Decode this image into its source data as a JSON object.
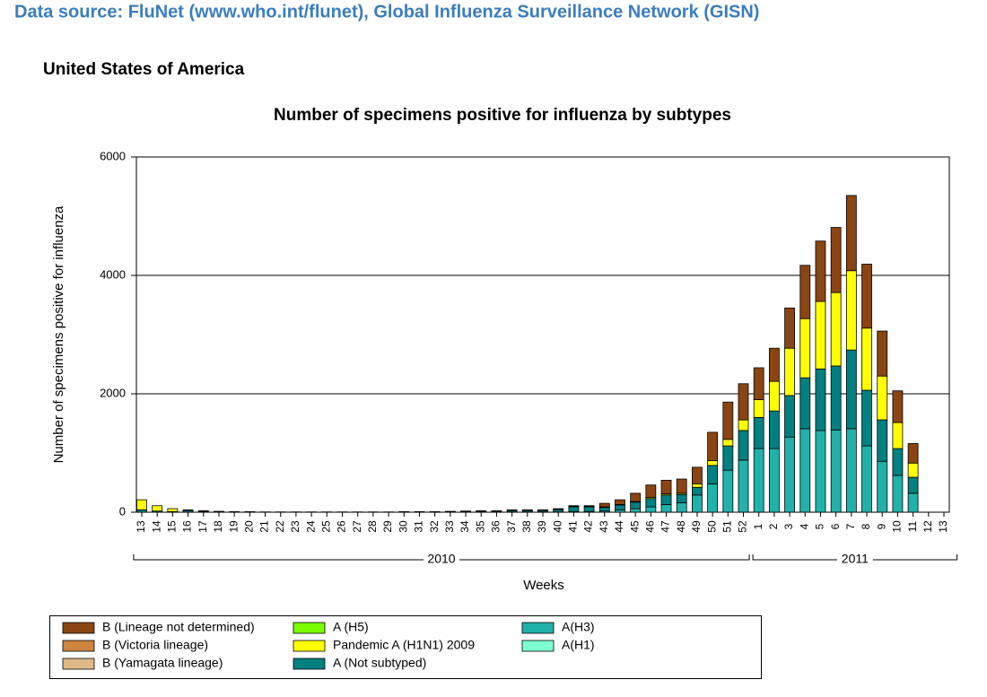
{
  "header": {
    "source": "Data source: FluNet (www.who.int/flunet), Global Influenza Surveillance Network (GISN)",
    "country": "United States of America"
  },
  "chart_data": {
    "type": "stacked_bar",
    "title": "Number of specimens positive for influenza by subtypes",
    "y_label": "Number of specimens positive for influenza",
    "x_label": "Weeks",
    "x_groups": [
      {
        "label": "2010",
        "count": 40
      },
      {
        "label": "2011",
        "count": 13
      }
    ],
    "categories": [
      "13",
      "14",
      "15",
      "16",
      "17",
      "18",
      "19",
      "20",
      "21",
      "22",
      "23",
      "24",
      "25",
      "26",
      "27",
      "28",
      "29",
      "30",
      "31",
      "32",
      "33",
      "34",
      "35",
      "36",
      "37",
      "38",
      "39",
      "40",
      "41",
      "42",
      "43",
      "44",
      "45",
      "46",
      "47",
      "48",
      "49",
      "50",
      "51",
      "52",
      "1",
      "2",
      "3",
      "4",
      "5",
      "6",
      "7",
      "8",
      "9",
      "10",
      "11",
      "12",
      "13"
    ],
    "ylim": [
      0,
      6000
    ],
    "yticks": [
      0,
      2000,
      4000,
      6000
    ],
    "grid": true,
    "series": [
      {
        "name": "B (Lineage not determined)",
        "color": "#8b4513",
        "values": [
          0,
          0,
          0,
          0,
          0,
          0,
          0,
          0,
          0,
          0,
          0,
          0,
          0,
          0,
          0,
          0,
          0,
          0,
          0,
          0,
          5,
          5,
          5,
          5,
          5,
          5,
          5,
          10,
          10,
          10,
          60,
          80,
          140,
          210,
          230,
          240,
          280,
          480,
          630,
          610,
          540,
          560,
          680,
          900,
          1020,
          1100,
          1270,
          1080,
          760,
          535,
          330,
          0,
          0
        ]
      },
      {
        "name": "B (Victoria lineage)",
        "color": "#cd853f",
        "values": [
          0,
          0,
          0,
          0,
          0,
          0,
          0,
          0,
          0,
          0,
          0,
          0,
          0,
          0,
          0,
          0,
          0,
          0,
          0,
          0,
          0,
          0,
          0,
          0,
          0,
          0,
          0,
          0,
          0,
          0,
          0,
          0,
          0,
          0,
          0,
          0,
          0,
          0,
          0,
          0,
          0,
          0,
          0,
          0,
          0,
          0,
          0,
          0,
          0,
          0,
          0,
          0,
          0
        ]
      },
      {
        "name": "B (Yamagata lineage)",
        "color": "#deb887",
        "values": [
          0,
          0,
          0,
          0,
          0,
          0,
          0,
          0,
          0,
          0,
          0,
          0,
          0,
          0,
          0,
          0,
          0,
          0,
          0,
          0,
          0,
          0,
          0,
          0,
          0,
          0,
          0,
          0,
          0,
          0,
          0,
          0,
          0,
          0,
          0,
          0,
          0,
          0,
          0,
          0,
          0,
          0,
          0,
          0,
          0,
          0,
          0,
          0,
          0,
          0,
          0,
          0,
          0
        ]
      },
      {
        "name": "A (H5)",
        "color": "#7cfc00",
        "values": [
          0,
          0,
          0,
          0,
          0,
          0,
          0,
          0,
          0,
          0,
          0,
          0,
          0,
          0,
          0,
          0,
          0,
          0,
          0,
          0,
          0,
          0,
          0,
          0,
          0,
          0,
          0,
          0,
          0,
          0,
          0,
          0,
          0,
          0,
          0,
          0,
          0,
          0,
          0,
          0,
          0,
          0,
          0,
          0,
          0,
          0,
          0,
          0,
          0,
          0,
          0,
          0,
          0
        ]
      },
      {
        "name": "Pandemic A (H1N1) 2009",
        "color": "#ffff00",
        "values": [
          170,
          90,
          50,
          10,
          10,
          5,
          5,
          5,
          0,
          0,
          0,
          0,
          0,
          0,
          0,
          0,
          0,
          0,
          0,
          0,
          0,
          0,
          0,
          0,
          5,
          5,
          5,
          5,
          10,
          10,
          10,
          10,
          10,
          20,
          20,
          20,
          60,
          80,
          110,
          180,
          300,
          500,
          800,
          1000,
          1140,
          1240,
          1340,
          1050,
          740,
          440,
          240,
          0,
          0
        ]
      },
      {
        "name": "A (Not subtyped)",
        "color": "#008080",
        "values": [
          40,
          20,
          10,
          30,
          15,
          10,
          5,
          5,
          5,
          5,
          5,
          5,
          5,
          5,
          5,
          5,
          5,
          10,
          10,
          10,
          10,
          15,
          15,
          15,
          25,
          25,
          25,
          40,
          80,
          80,
          60,
          80,
          110,
          140,
          160,
          140,
          130,
          310,
          410,
          500,
          525,
          635,
          700,
          860,
          1040,
          1080,
          1330,
          940,
          700,
          455,
          270,
          0,
          0
        ]
      },
      {
        "name": "A(H3)",
        "color": "#20b2aa",
        "values": [
          0,
          0,
          0,
          0,
          0,
          0,
          0,
          0,
          0,
          0,
          0,
          0,
          0,
          0,
          0,
          0,
          0,
          0,
          0,
          0,
          0,
          0,
          5,
          5,
          5,
          5,
          5,
          5,
          10,
          10,
          20,
          40,
          60,
          90,
          130,
          160,
          290,
          480,
          710,
          880,
          1075,
          1075,
          1270,
          1410,
          1380,
          1390,
          1410,
          1120,
          860,
          620,
          320,
          0,
          0
        ]
      },
      {
        "name": "A(H1)",
        "color": "#7fffd4",
        "values": [
          0,
          0,
          0,
          0,
          0,
          0,
          0,
          0,
          0,
          0,
          0,
          0,
          0,
          0,
          0,
          0,
          0,
          0,
          0,
          0,
          0,
          0,
          0,
          0,
          0,
          0,
          0,
          0,
          0,
          0,
          0,
          0,
          0,
          0,
          0,
          0,
          0,
          0,
          0,
          0,
          0,
          0,
          0,
          0,
          0,
          0,
          0,
          0,
          0,
          0,
          0,
          0,
          0
        ]
      }
    ]
  }
}
